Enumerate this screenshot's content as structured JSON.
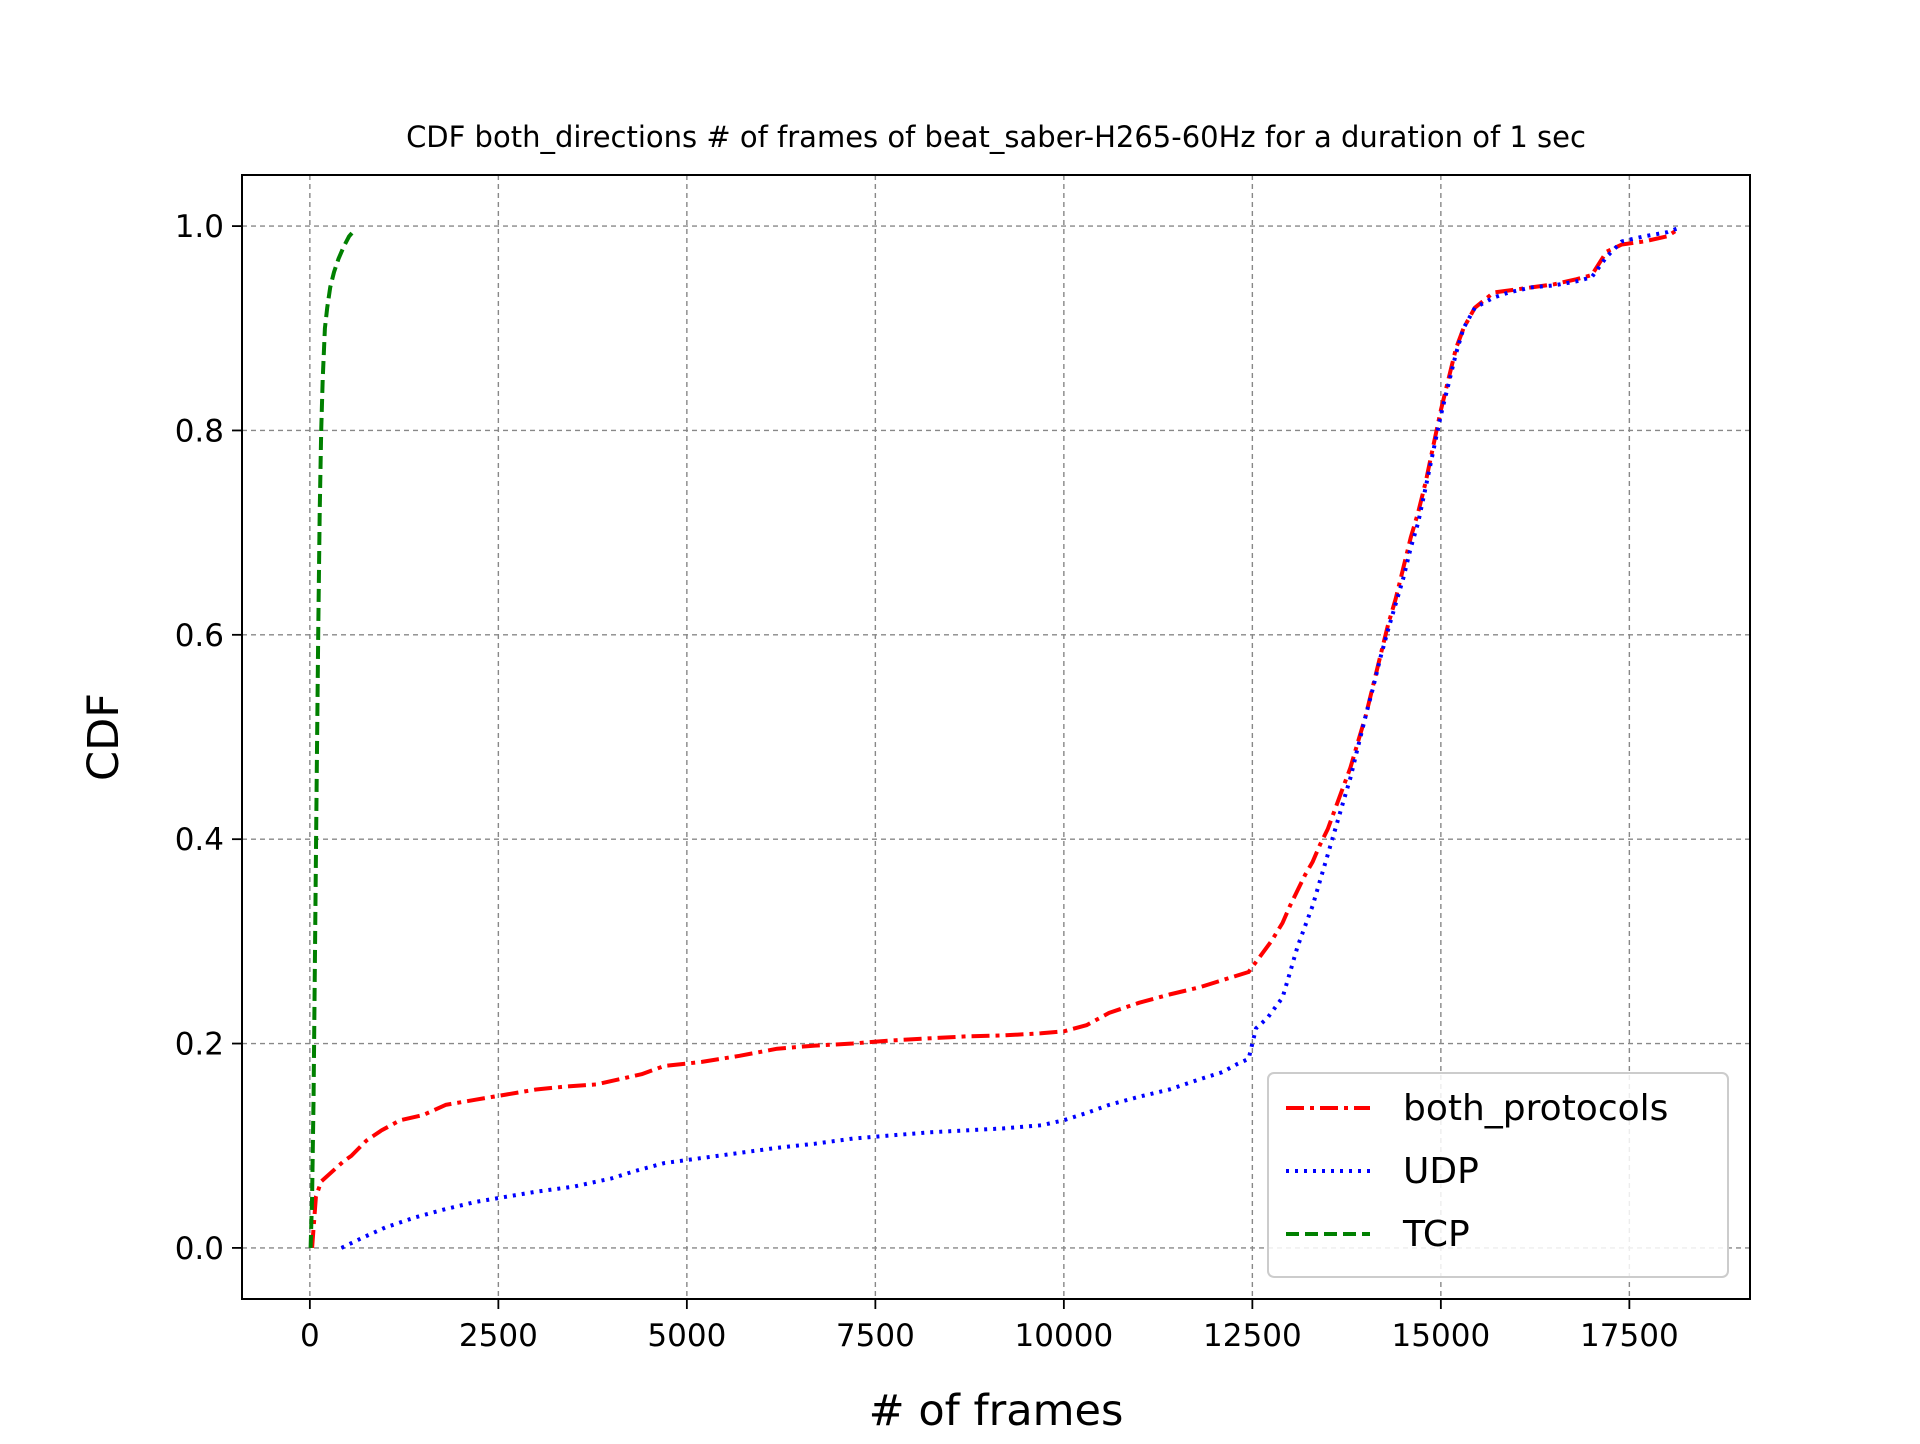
{
  "chart_data": {
    "type": "line",
    "title": "CDF both_directions # of frames of beat_saber-H265-60Hz for a duration of 1 sec",
    "xlabel": "# of frames",
    "ylabel": "CDF",
    "xlim": [
      -900,
      19100
    ],
    "ylim": [
      -0.05,
      1.05
    ],
    "xticks": [
      0,
      2500,
      5000,
      7500,
      10000,
      12500,
      15000,
      17500
    ],
    "xtick_labels": [
      "0",
      "2500",
      "5000",
      "7500",
      "10000",
      "12500",
      "15000",
      "17500"
    ],
    "yticks": [
      0.0,
      0.2,
      0.4,
      0.6,
      0.8,
      1.0
    ],
    "ytick_labels": [
      "0.0",
      "0.2",
      "0.4",
      "0.6",
      "0.8",
      "1.0"
    ],
    "grid": true,
    "legend_position": "bottom-right",
    "series": [
      {
        "name": "both_protocols",
        "color": "#ff0000",
        "dash": "dashdot",
        "x": [
          30,
          80,
          150,
          300,
          450,
          550,
          750,
          950,
          1200,
          1500,
          1800,
          2200,
          2600,
          3000,
          3400,
          3800,
          4100,
          4400,
          4700,
          5200,
          5700,
          6200,
          6700,
          7200,
          7700,
          8200,
          8700,
          9200,
          9700,
          10000,
          10300,
          10600,
          11000,
          11400,
          11800,
          12100,
          12450,
          12600,
          12750,
          12900,
          13000,
          13100,
          13200,
          13300,
          13400,
          13500,
          13600,
          13700,
          13800,
          13900,
          14000,
          14100,
          14200,
          14300,
          14400,
          14500,
          14600,
          14700,
          14800,
          14900,
          15000,
          15100,
          15200,
          15300,
          15450,
          15700,
          15900,
          16200,
          16500,
          16800,
          17000,
          17200,
          17400,
          17700,
          18000,
          18150
        ],
        "y": [
          0.0,
          0.05,
          0.065,
          0.075,
          0.085,
          0.09,
          0.105,
          0.115,
          0.125,
          0.13,
          0.14,
          0.145,
          0.15,
          0.155,
          0.158,
          0.16,
          0.165,
          0.17,
          0.178,
          0.182,
          0.188,
          0.195,
          0.198,
          0.2,
          0.203,
          0.205,
          0.207,
          0.208,
          0.21,
          0.212,
          0.218,
          0.23,
          0.24,
          0.248,
          0.255,
          0.262,
          0.27,
          0.285,
          0.3,
          0.318,
          0.335,
          0.35,
          0.365,
          0.378,
          0.395,
          0.41,
          0.43,
          0.45,
          0.47,
          0.495,
          0.52,
          0.55,
          0.58,
          0.61,
          0.635,
          0.665,
          0.695,
          0.72,
          0.75,
          0.785,
          0.82,
          0.85,
          0.88,
          0.9,
          0.92,
          0.935,
          0.937,
          0.94,
          0.943,
          0.948,
          0.952,
          0.975,
          0.982,
          0.985,
          0.99,
          0.997
        ]
      },
      {
        "name": "UDP",
        "color": "#0000ff",
        "dash": "dotted",
        "x": [
          420,
          700,
          1000,
          1400,
          1800,
          2200,
          2600,
          3000,
          3500,
          4000,
          4300,
          4700,
          5200,
          5700,
          6200,
          6700,
          7200,
          7700,
          8200,
          8700,
          9200,
          9700,
          10000,
          10300,
          10600,
          11000,
          11400,
          11800,
          12100,
          12300,
          12450,
          12550,
          12700,
          12900,
          13000,
          13100,
          13200,
          13300,
          13400,
          13500,
          13600,
          13700,
          13800,
          13900,
          14000,
          14100,
          14200,
          14300,
          14400,
          14500,
          14600,
          14700,
          14800,
          14900,
          15000,
          15100,
          15200,
          15300,
          15450,
          15700,
          15900,
          16200,
          16500,
          16800,
          17000,
          17200,
          17400,
          17700,
          18000,
          18150
        ],
        "y": [
          0.0,
          0.01,
          0.02,
          0.03,
          0.038,
          0.045,
          0.05,
          0.055,
          0.06,
          0.068,
          0.075,
          0.083,
          0.088,
          0.093,
          0.098,
          0.102,
          0.107,
          0.11,
          0.113,
          0.115,
          0.117,
          0.12,
          0.125,
          0.132,
          0.14,
          0.148,
          0.155,
          0.165,
          0.172,
          0.18,
          0.185,
          0.215,
          0.225,
          0.245,
          0.27,
          0.295,
          0.315,
          0.335,
          0.36,
          0.385,
          0.41,
          0.435,
          0.46,
          0.49,
          0.52,
          0.548,
          0.578,
          0.605,
          0.63,
          0.655,
          0.685,
          0.71,
          0.745,
          0.78,
          0.815,
          0.845,
          0.875,
          0.9,
          0.92,
          0.93,
          0.935,
          0.94,
          0.942,
          0.946,
          0.95,
          0.97,
          0.985,
          0.99,
          0.994,
          0.998
        ]
      },
      {
        "name": "TCP",
        "color": "#008000",
        "dash": "dashed",
        "x": [
          10,
          30,
          50,
          70,
          90,
          110,
          130,
          150,
          170,
          200,
          230,
          270,
          320,
          380,
          450,
          520,
          580
        ],
        "y": [
          0.0,
          0.05,
          0.15,
          0.3,
          0.45,
          0.6,
          0.72,
          0.8,
          0.85,
          0.9,
          0.92,
          0.94,
          0.955,
          0.968,
          0.98,
          0.99,
          0.995
        ]
      }
    ]
  }
}
